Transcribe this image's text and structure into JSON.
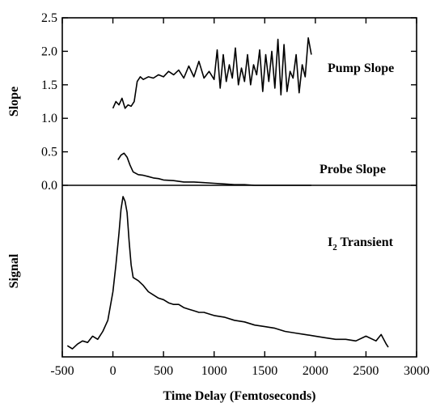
{
  "chart_data": [
    {
      "type": "line",
      "panel": "top",
      "ylabel": "Slope",
      "xlim": [
        -500,
        3000
      ],
      "ylim": [
        0,
        2.5
      ],
      "yticks": [
        0.0,
        0.5,
        1.0,
        1.5,
        2.0,
        2.5
      ],
      "ytick_labels": [
        "0.0",
        "0.5",
        "1.0",
        "1.5",
        "2.0",
        "2.5"
      ],
      "series": [
        {
          "name": "Pump Slope",
          "x": [
            0,
            30,
            60,
            90,
            120,
            150,
            180,
            210,
            240,
            270,
            300,
            350,
            400,
            450,
            500,
            550,
            600,
            650,
            700,
            750,
            800,
            850,
            900,
            950,
            1000,
            1030,
            1060,
            1090,
            1120,
            1150,
            1180,
            1210,
            1240,
            1270,
            1300,
            1330,
            1360,
            1390,
            1420,
            1450,
            1480,
            1510,
            1540,
            1570,
            1600,
            1630,
            1660,
            1690,
            1720,
            1750,
            1780,
            1810,
            1840,
            1870,
            1900,
            1930,
            1960
          ],
          "y": [
            1.15,
            1.25,
            1.2,
            1.3,
            1.15,
            1.2,
            1.18,
            1.25,
            1.55,
            1.62,
            1.58,
            1.62,
            1.6,
            1.65,
            1.62,
            1.7,
            1.65,
            1.72,
            1.6,
            1.78,
            1.62,
            1.85,
            1.6,
            1.7,
            1.58,
            2.02,
            1.45,
            1.95,
            1.55,
            1.8,
            1.6,
            2.05,
            1.5,
            1.75,
            1.55,
            1.95,
            1.5,
            1.8,
            1.65,
            2.02,
            1.4,
            1.95,
            1.55,
            2.0,
            1.45,
            2.18,
            1.35,
            2.1,
            1.4,
            1.7,
            1.6,
            1.95,
            1.38,
            1.8,
            1.62,
            2.2,
            1.95
          ],
          "label": "Pump Slope"
        },
        {
          "name": "Probe Slope",
          "x": [
            50,
            80,
            110,
            140,
            170,
            200,
            250,
            300,
            350,
            400,
            450,
            500,
            600,
            700,
            800,
            900,
            1000,
            1100,
            1200,
            1300,
            1400,
            1500,
            1600,
            1700,
            1800,
            1900,
            1960
          ],
          "y": [
            0.38,
            0.45,
            0.48,
            0.42,
            0.3,
            0.2,
            0.16,
            0.15,
            0.13,
            0.11,
            0.1,
            0.08,
            0.07,
            0.05,
            0.05,
            0.04,
            0.03,
            0.02,
            0.01,
            0.01,
            0.0,
            0.0,
            0.0,
            0.0,
            0.0,
            0.0,
            0.0
          ],
          "label": "Probe Slope"
        }
      ]
    },
    {
      "type": "line",
      "panel": "bottom",
      "xlabel": "Time Delay (Femtoseconds)",
      "ylabel": "Signal",
      "xlim": [
        -500,
        3000
      ],
      "xticks": [
        -500,
        0,
        500,
        1000,
        1500,
        2000,
        2500,
        3000
      ],
      "xtick_labels": [
        "-500",
        "0",
        "500",
        "1000",
        "1500",
        "2000",
        "2500",
        "3000"
      ],
      "ylim": [
        0,
        1
      ],
      "series": [
        {
          "name": "I2 Transient",
          "x": [
            -450,
            -400,
            -350,
            -300,
            -250,
            -200,
            -150,
            -100,
            -50,
            0,
            30,
            60,
            80,
            100,
            120,
            140,
            160,
            180,
            200,
            250,
            300,
            350,
            400,
            450,
            500,
            550,
            600,
            650,
            700,
            750,
            800,
            850,
            900,
            950,
            1000,
            1100,
            1200,
            1300,
            1400,
            1500,
            1600,
            1700,
            1800,
            1900,
            2000,
            2100,
            2200,
            2300,
            2400,
            2500,
            2600,
            2650,
            2700,
            2720
          ],
          "y": [
            0.04,
            0.02,
            0.05,
            0.07,
            0.06,
            0.1,
            0.08,
            0.13,
            0.2,
            0.38,
            0.55,
            0.75,
            0.9,
            0.98,
            0.95,
            0.88,
            0.7,
            0.55,
            0.47,
            0.45,
            0.42,
            0.38,
            0.36,
            0.34,
            0.33,
            0.31,
            0.3,
            0.3,
            0.28,
            0.27,
            0.26,
            0.25,
            0.25,
            0.24,
            0.23,
            0.22,
            0.2,
            0.19,
            0.17,
            0.16,
            0.15,
            0.13,
            0.12,
            0.11,
            0.1,
            0.09,
            0.08,
            0.08,
            0.07,
            0.1,
            0.07,
            0.11,
            0.05,
            0.03
          ],
          "label_main": "I",
          "label_sub": "2",
          "label_rest": " Transient"
        }
      ]
    }
  ]
}
